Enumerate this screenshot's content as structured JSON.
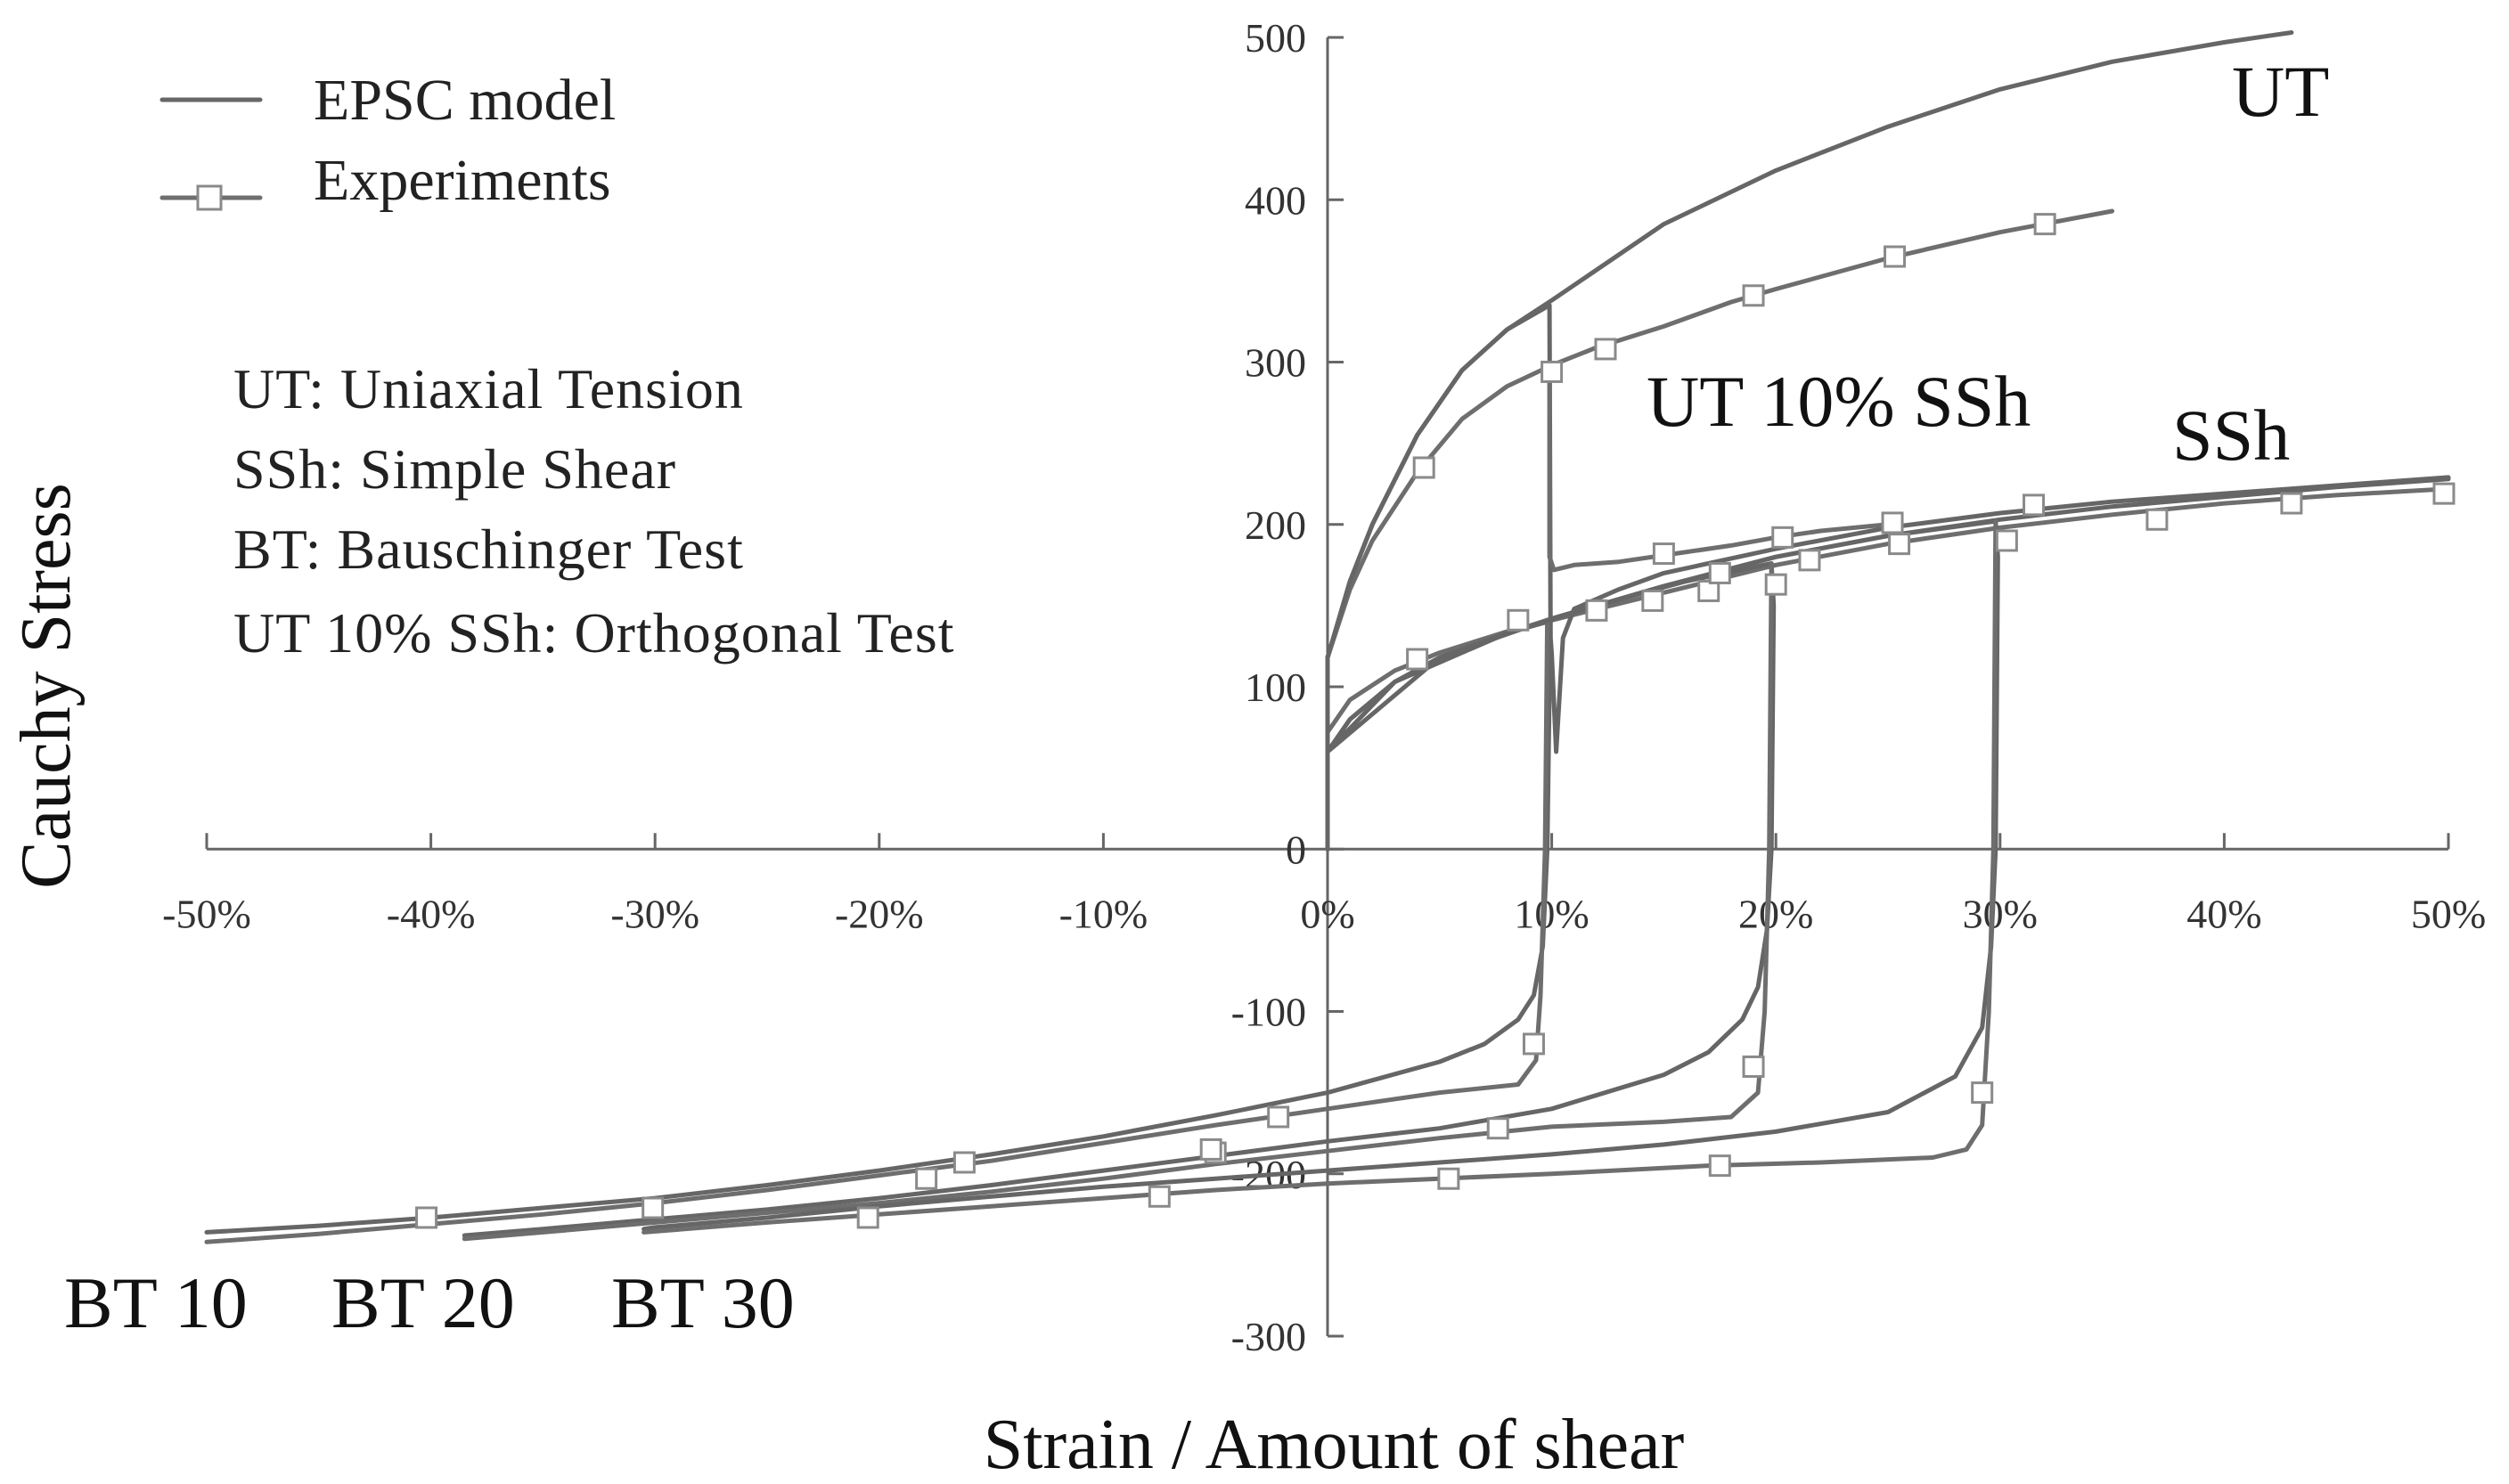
{
  "chart_data": {
    "type": "line",
    "title": "",
    "xlabel": "Strain / Amount of shear",
    "ylabel": "Cauchy Stress",
    "xlim": [
      -50,
      50
    ],
    "ylim": [
      -300,
      500
    ],
    "x_ticks": [
      -50,
      -40,
      -30,
      -20,
      -10,
      0,
      10,
      20,
      30,
      40,
      50
    ],
    "x_tick_labels": [
      "-50%",
      "-40%",
      "-30%",
      "-20%",
      "-10%",
      "0%",
      "10%",
      "20%",
      "30%",
      "40%",
      "50%"
    ],
    "y_ticks": [
      -300,
      -200,
      -100,
      0,
      100,
      200,
      300,
      400,
      500
    ],
    "y_tick_labels": [
      "-300",
      "-200",
      "-100",
      "0",
      "100",
      "200",
      "300",
      "400",
      "500"
    ],
    "legend": {
      "position": "top-left",
      "entries": [
        {
          "label": "EPSC model",
          "style": "line"
        },
        {
          "label": "Experiments",
          "style": "line-square-marker"
        }
      ]
    },
    "abbreviations": [
      "UT: Uniaxial Tension",
      "SSh: Simple Shear",
      "BT: Bauschinger Test",
      "UT 10% SSh: Orthogonal Test"
    ],
    "curve_labels": {
      "ut": "UT",
      "ut_ssh": "UT 10% SSh",
      "ssh": "SSh",
      "bt10": "BT 10",
      "bt20": "BT 20",
      "bt30": "BT 30"
    },
    "series": [
      {
        "name": "UT model",
        "kind": "model",
        "points": [
          [
            0,
            0
          ],
          [
            0,
            118
          ],
          [
            1,
            165
          ],
          [
            2,
            200
          ],
          [
            4,
            255
          ],
          [
            6,
            295
          ],
          [
            8,
            320
          ],
          [
            10,
            338
          ],
          [
            15,
            385
          ],
          [
            20,
            418
          ],
          [
            25,
            445
          ],
          [
            30,
            468
          ],
          [
            35,
            485
          ],
          [
            40,
            497
          ],
          [
            43,
            503
          ]
        ]
      },
      {
        "name": "UT experiment",
        "kind": "experiment",
        "points": [
          [
            0,
            0
          ],
          [
            0,
            118
          ],
          [
            1,
            160
          ],
          [
            2,
            190
          ],
          [
            4,
            232
          ],
          [
            6,
            265
          ],
          [
            8,
            285
          ],
          [
            10,
            298
          ],
          [
            12,
            309
          ],
          [
            15,
            322
          ],
          [
            18,
            337
          ],
          [
            20,
            345
          ],
          [
            25,
            364
          ],
          [
            30,
            380
          ],
          [
            35,
            393
          ]
        ],
        "markers": [
          [
            4.3,
            235
          ],
          [
            10,
            294
          ],
          [
            12.4,
            308
          ],
          [
            19,
            341
          ],
          [
            25.3,
            365
          ],
          [
            32,
            385
          ]
        ]
      },
      {
        "name": "SSh model",
        "kind": "model",
        "points": [
          [
            0,
            0
          ],
          [
            0,
            60
          ],
          [
            1,
            80
          ],
          [
            3,
            103
          ],
          [
            5,
            118
          ],
          [
            8,
            133
          ],
          [
            10,
            142
          ],
          [
            15,
            162
          ],
          [
            20,
            180
          ],
          [
            25,
            193
          ],
          [
            30,
            203
          ],
          [
            35,
            211
          ],
          [
            40,
            217
          ],
          [
            45,
            223
          ],
          [
            50,
            228
          ]
        ]
      },
      {
        "name": "SSh experiment",
        "kind": "experiment",
        "points": [
          [
            0,
            0
          ],
          [
            0,
            72
          ],
          [
            1,
            92
          ],
          [
            3,
            110
          ],
          [
            5,
            121
          ],
          [
            8,
            134
          ],
          [
            10,
            141
          ],
          [
            15,
            158
          ],
          [
            20,
            175
          ],
          [
            25,
            188
          ],
          [
            30,
            198
          ],
          [
            35,
            206
          ],
          [
            40,
            213
          ],
          [
            45,
            218
          ],
          [
            50,
            222
          ]
        ],
        "markers": [
          [
            4,
            117
          ],
          [
            8.5,
            141
          ],
          [
            12,
            147
          ],
          [
            14.5,
            153
          ],
          [
            17,
            159
          ],
          [
            20,
            163
          ],
          [
            21.5,
            178
          ],
          [
            25.5,
            188
          ],
          [
            30.3,
            190
          ],
          [
            37,
            203
          ],
          [
            43,
            213
          ],
          [
            49.8,
            219
          ]
        ]
      },
      {
        "name": "UT 10% SSh model",
        "kind": "model",
        "points": [
          [
            0,
            0
          ],
          [
            0,
            118
          ],
          [
            1,
            165
          ],
          [
            2,
            200
          ],
          [
            4,
            255
          ],
          [
            6,
            295
          ],
          [
            8,
            320
          ],
          [
            9.9,
            335
          ],
          [
            9.95,
            130
          ],
          [
            10,
            120
          ],
          [
            10.2,
            60
          ],
          [
            10.5,
            130
          ],
          [
            11,
            148
          ],
          [
            13,
            160
          ],
          [
            15,
            170
          ],
          [
            20,
            185
          ],
          [
            25,
            198
          ],
          [
            30,
            207
          ],
          [
            35,
            214
          ],
          [
            40,
            219
          ],
          [
            45,
            224
          ],
          [
            50,
            229
          ]
        ]
      },
      {
        "name": "UT 10% SSh experiment",
        "kind": "experiment",
        "points": [
          [
            9.9,
            295
          ],
          [
            9.9,
            180
          ],
          [
            10.1,
            172
          ],
          [
            11,
            175
          ],
          [
            13,
            177
          ],
          [
            15,
            181
          ],
          [
            18,
            187
          ],
          [
            20,
            192
          ],
          [
            22,
            196
          ],
          [
            25,
            200
          ]
        ],
        "markers": [
          [
            15,
            182
          ],
          [
            17.5,
            170
          ],
          [
            20.3,
            192
          ],
          [
            25.2,
            201
          ],
          [
            31.5,
            212
          ]
        ]
      },
      {
        "name": "BT 10 model",
        "kind": "model",
        "points": [
          [
            0,
            0
          ],
          [
            0,
            60
          ],
          [
            1,
            80
          ],
          [
            3,
            103
          ],
          [
            5,
            118
          ],
          [
            8,
            133
          ],
          [
            9.8,
            140
          ],
          [
            9.9,
            100
          ],
          [
            9.8,
            0
          ],
          [
            9.6,
            -60
          ],
          [
            9.2,
            -90
          ],
          [
            8.5,
            -105
          ],
          [
            7,
            -120
          ],
          [
            5,
            -131
          ],
          [
            0,
            -150
          ],
          [
            -5,
            -164
          ],
          [
            -10,
            -177
          ],
          [
            -15,
            -188
          ],
          [
            -20,
            -198
          ],
          [
            -25,
            -207
          ],
          [
            -30,
            -215
          ],
          [
            -35,
            -221
          ],
          [
            -40,
            -227
          ],
          [
            -45,
            -232
          ],
          [
            -50,
            -236
          ]
        ]
      },
      {
        "name": "BT 10 experiment",
        "kind": "experiment",
        "points": [
          [
            9.8,
            140
          ],
          [
            9.7,
            0
          ],
          [
            9.5,
            -90
          ],
          [
            9.3,
            -130
          ],
          [
            8.5,
            -145
          ],
          [
            5,
            -150
          ],
          [
            0,
            -160
          ],
          [
            -5,
            -170
          ],
          [
            -10,
            -181
          ],
          [
            -15,
            -192
          ],
          [
            -20,
            -201
          ],
          [
            -25,
            -210
          ],
          [
            -30,
            -218
          ],
          [
            -35,
            -225
          ],
          [
            -40,
            -231
          ],
          [
            -45,
            -237
          ],
          [
            -50,
            -242
          ]
        ],
        "markers": [
          [
            9.2,
            -120
          ],
          [
            -2.2,
            -165
          ],
          [
            -5,
            -187
          ],
          [
            -16.2,
            -193
          ],
          [
            -17.9,
            -203
          ],
          [
            -40.2,
            -227
          ]
        ]
      },
      {
        "name": "BT 20 model",
        "kind": "model",
        "points": [
          [
            0,
            0
          ],
          [
            0,
            60
          ],
          [
            3,
            103
          ],
          [
            8,
            133
          ],
          [
            12,
            150
          ],
          [
            16,
            165
          ],
          [
            19.8,
            176
          ],
          [
            19.9,
            150
          ],
          [
            19.8,
            0
          ],
          [
            19.6,
            -50
          ],
          [
            19.2,
            -85
          ],
          [
            18.5,
            -105
          ],
          [
            17,
            -125
          ],
          [
            15,
            -139
          ],
          [
            10,
            -160
          ],
          [
            5,
            -172
          ],
          [
            0,
            -180
          ],
          [
            -5,
            -189
          ],
          [
            -10,
            -198
          ],
          [
            -15,
            -207
          ],
          [
            -20,
            -215
          ],
          [
            -25,
            -222
          ],
          [
            -30,
            -228
          ],
          [
            -35,
            -234
          ],
          [
            -38.5,
            -238
          ]
        ]
      },
      {
        "name": "BT 20 experiment",
        "kind": "experiment",
        "points": [
          [
            19.8,
            176
          ],
          [
            19.7,
            0
          ],
          [
            19.5,
            -100
          ],
          [
            19.2,
            -150
          ],
          [
            18,
            -165
          ],
          [
            15,
            -168
          ],
          [
            10,
            -171
          ],
          [
            5,
            -178
          ],
          [
            0,
            -186
          ],
          [
            -5,
            -194
          ],
          [
            -10,
            -203
          ],
          [
            -15,
            -211
          ],
          [
            -20,
            -218
          ],
          [
            -25,
            -224
          ],
          [
            -30,
            -230
          ],
          [
            -35,
            -236
          ],
          [
            -38.5,
            -240
          ]
        ],
        "markers": [
          [
            19,
            -134
          ],
          [
            7.6,
            -172
          ],
          [
            -5.2,
            -185
          ],
          [
            -30.1,
            -221
          ]
        ]
      },
      {
        "name": "BT 30 model",
        "kind": "model",
        "points": [
          [
            0,
            0
          ],
          [
            0,
            60
          ],
          [
            5,
            118
          ],
          [
            10,
            142
          ],
          [
            15,
            162
          ],
          [
            20,
            180
          ],
          [
            25,
            193
          ],
          [
            29.8,
            202
          ],
          [
            29.9,
            180
          ],
          [
            29.8,
            0
          ],
          [
            29.6,
            -60
          ],
          [
            29.2,
            -110
          ],
          [
            28,
            -140
          ],
          [
            25,
            -162
          ],
          [
            20,
            -174
          ],
          [
            15,
            -182
          ],
          [
            10,
            -188
          ],
          [
            5,
            -193
          ],
          [
            0,
            -198
          ],
          [
            -5,
            -203
          ],
          [
            -10,
            -208
          ],
          [
            -15,
            -214
          ],
          [
            -20,
            -220
          ],
          [
            -25,
            -227
          ],
          [
            -30,
            -233
          ],
          [
            -30.5,
            -234
          ]
        ]
      },
      {
        "name": "BT 30 experiment",
        "kind": "experiment",
        "points": [
          [
            29.8,
            202
          ],
          [
            29.7,
            0
          ],
          [
            29.5,
            -100
          ],
          [
            29.2,
            -170
          ],
          [
            28.5,
            -185
          ],
          [
            27,
            -190
          ],
          [
            22,
            -193
          ],
          [
            17,
            -195
          ],
          [
            10,
            -200
          ],
          [
            5,
            -203
          ],
          [
            0,
            -206
          ],
          [
            -5,
            -210
          ],
          [
            -10,
            -215
          ],
          [
            -15,
            -220
          ],
          [
            -20,
            -225
          ],
          [
            -25,
            -230
          ],
          [
            -30.5,
            -236
          ]
        ],
        "markers": [
          [
            29.2,
            -150
          ],
          [
            17.5,
            -195
          ],
          [
            5.4,
            -203
          ],
          [
            -7.5,
            -214
          ],
          [
            -20.5,
            -227
          ]
        ]
      }
    ]
  }
}
